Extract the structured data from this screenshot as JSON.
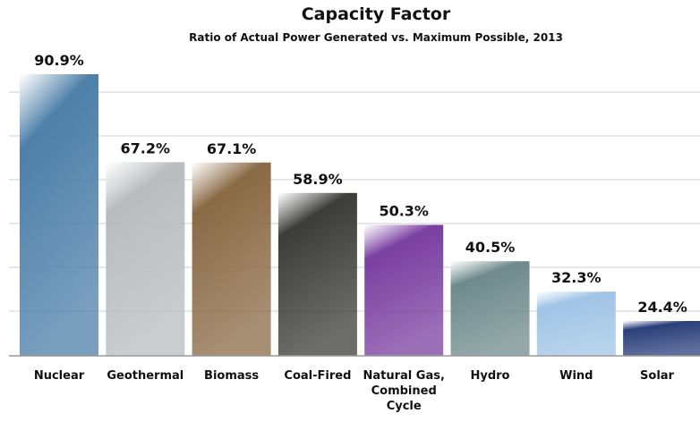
{
  "chart_data": {
    "type": "bar",
    "title": "Capacity Factor",
    "subtitle": "Ratio of Actual Power Generated vs. Maximum Possible, 2013",
    "categories": [
      "Nuclear",
      "Geothermal",
      "Biomass",
      "Coal-Fired",
      "Natural Gas, Combined Cycle",
      "Hydro",
      "Wind",
      "Solar"
    ],
    "values": [
      90.9,
      67.2,
      67.1,
      58.9,
      50.3,
      40.5,
      32.3,
      24.4
    ],
    "value_labels": [
      "90.9%",
      "67.2%",
      "67.1%",
      "58.9%",
      "50.3%",
      "40.5%",
      "32.3%",
      "24.4%"
    ],
    "colors": [
      "#4d7fa8",
      "#b9bcbf",
      "#8a6a45",
      "#3c3c3a",
      "#7a3fa0",
      "#6f8a8c",
      "#9fc4e6",
      "#2a3f7a"
    ],
    "ylim": [
      15,
      91.5
    ]
  }
}
